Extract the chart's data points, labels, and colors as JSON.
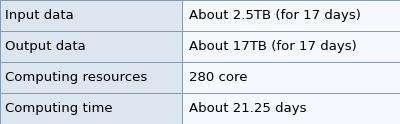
{
  "rows": [
    [
      "Input data",
      "About 2.5TB (for 17 days)"
    ],
    [
      "Output data",
      "About 17TB (for 17 days)"
    ],
    [
      "Computing resources",
      "280 core"
    ],
    [
      "Computing time",
      "About 21.25 days"
    ]
  ],
  "col_split": 0.455,
  "left_bg": "#dce6f1",
  "right_bg": "#f5f8fc",
  "border_color": "#8899aa",
  "text_color": "#000000",
  "font_size": 9.5,
  "fig_width": 4.0,
  "fig_height": 1.24,
  "dpi": 100
}
